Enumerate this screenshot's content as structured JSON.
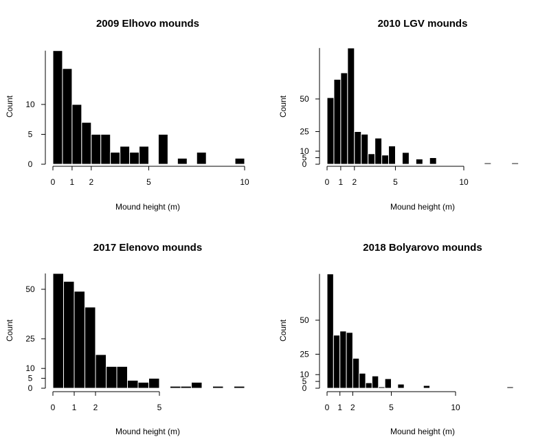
{
  "chart_data": [
    {
      "type": "bar",
      "title": "2009 Elhovo mounds",
      "xlabel": "Mound height (m)",
      "ylabel": "Count",
      "x_ticks": [
        0,
        1,
        2,
        5,
        10
      ],
      "y_ticks": [
        0,
        5,
        10
      ],
      "xlim": [
        0,
        10
      ],
      "ylim": [
        0,
        19
      ],
      "bin_edges": [
        0,
        0.5,
        1,
        1.5,
        2,
        2.5,
        3,
        3.5,
        4,
        4.5,
        5,
        5.5,
        6,
        6.5,
        7,
        7.5,
        8,
        8.5,
        9,
        9.5,
        10
      ],
      "values": [
        19,
        16,
        10,
        7,
        5,
        5,
        2,
        3,
        2,
        3,
        0,
        5,
        0,
        1,
        0,
        2,
        0,
        0,
        0,
        1
      ]
    },
    {
      "type": "bar",
      "title": "2010 LGV mounds",
      "xlabel": "Mound height (m)",
      "ylabel": "Count",
      "x_ticks": [
        0,
        1,
        2,
        5,
        10
      ],
      "y_ticks": [
        0,
        5,
        10,
        25,
        50
      ],
      "xlim": [
        0,
        14
      ],
      "ylim": [
        0,
        89
      ],
      "bin_edges": [
        0,
        0.5,
        1,
        1.5,
        2,
        2.5,
        3,
        3.5,
        4,
        4.5,
        5,
        5.5,
        6,
        6.5,
        7,
        7.5,
        8,
        8.5,
        9,
        9.5,
        10,
        10.5,
        11,
        11.5,
        12,
        12.5,
        13,
        13.5,
        14
      ],
      "values": [
        51,
        65,
        70,
        89,
        25,
        23,
        8,
        20,
        7,
        14,
        0,
        9,
        0,
        4,
        0,
        5,
        0,
        0,
        0,
        0,
        0,
        0,
        0,
        1,
        0,
        0,
        0,
        1
      ]
    },
    {
      "type": "bar",
      "title": "2017 Elenovo mounds",
      "xlabel": "Mound height (m)",
      "ylabel": "Count",
      "x_ticks": [
        0,
        1,
        2,
        5
      ],
      "y_ticks": [
        0,
        5,
        10,
        25,
        50
      ],
      "xlim": [
        0,
        9
      ],
      "ylim": [
        0,
        58
      ],
      "bin_edges": [
        0,
        0.5,
        1,
        1.5,
        2,
        2.5,
        3,
        3.5,
        4,
        4.5,
        5,
        5.5,
        6,
        6.5,
        7,
        7.5,
        8,
        8.5,
        9
      ],
      "values": [
        58,
        54,
        49,
        41,
        17,
        11,
        11,
        4,
        3,
        5,
        0,
        1,
        1,
        3,
        0,
        1,
        0,
        1
      ]
    },
    {
      "type": "bar",
      "title": "2018 Bolyarovo mounds",
      "xlabel": "Mound height (m)",
      "ylabel": "Count",
      "x_ticks": [
        0,
        1,
        2,
        5,
        10
      ],
      "y_ticks": [
        0,
        5,
        10,
        25,
        50
      ],
      "xlim": [
        0,
        14.5
      ],
      "ylim": [
        0,
        84
      ],
      "bin_edges": [
        0,
        0.5,
        1,
        1.5,
        2,
        2.5,
        3,
        3.5,
        4,
        4.5,
        5,
        5.5,
        6,
        6.5,
        7,
        7.5,
        8,
        8.5,
        9,
        9.5,
        10,
        10.5,
        11,
        11.5,
        12,
        12.5,
        13,
        13.5,
        14,
        14.5
      ],
      "values": [
        84,
        39,
        42,
        41,
        22,
        11,
        4,
        9,
        1,
        7,
        0,
        3,
        0,
        0,
        0,
        2,
        0,
        0,
        0,
        0,
        0,
        0,
        0,
        0,
        0,
        0,
        0,
        0,
        1
      ]
    }
  ]
}
